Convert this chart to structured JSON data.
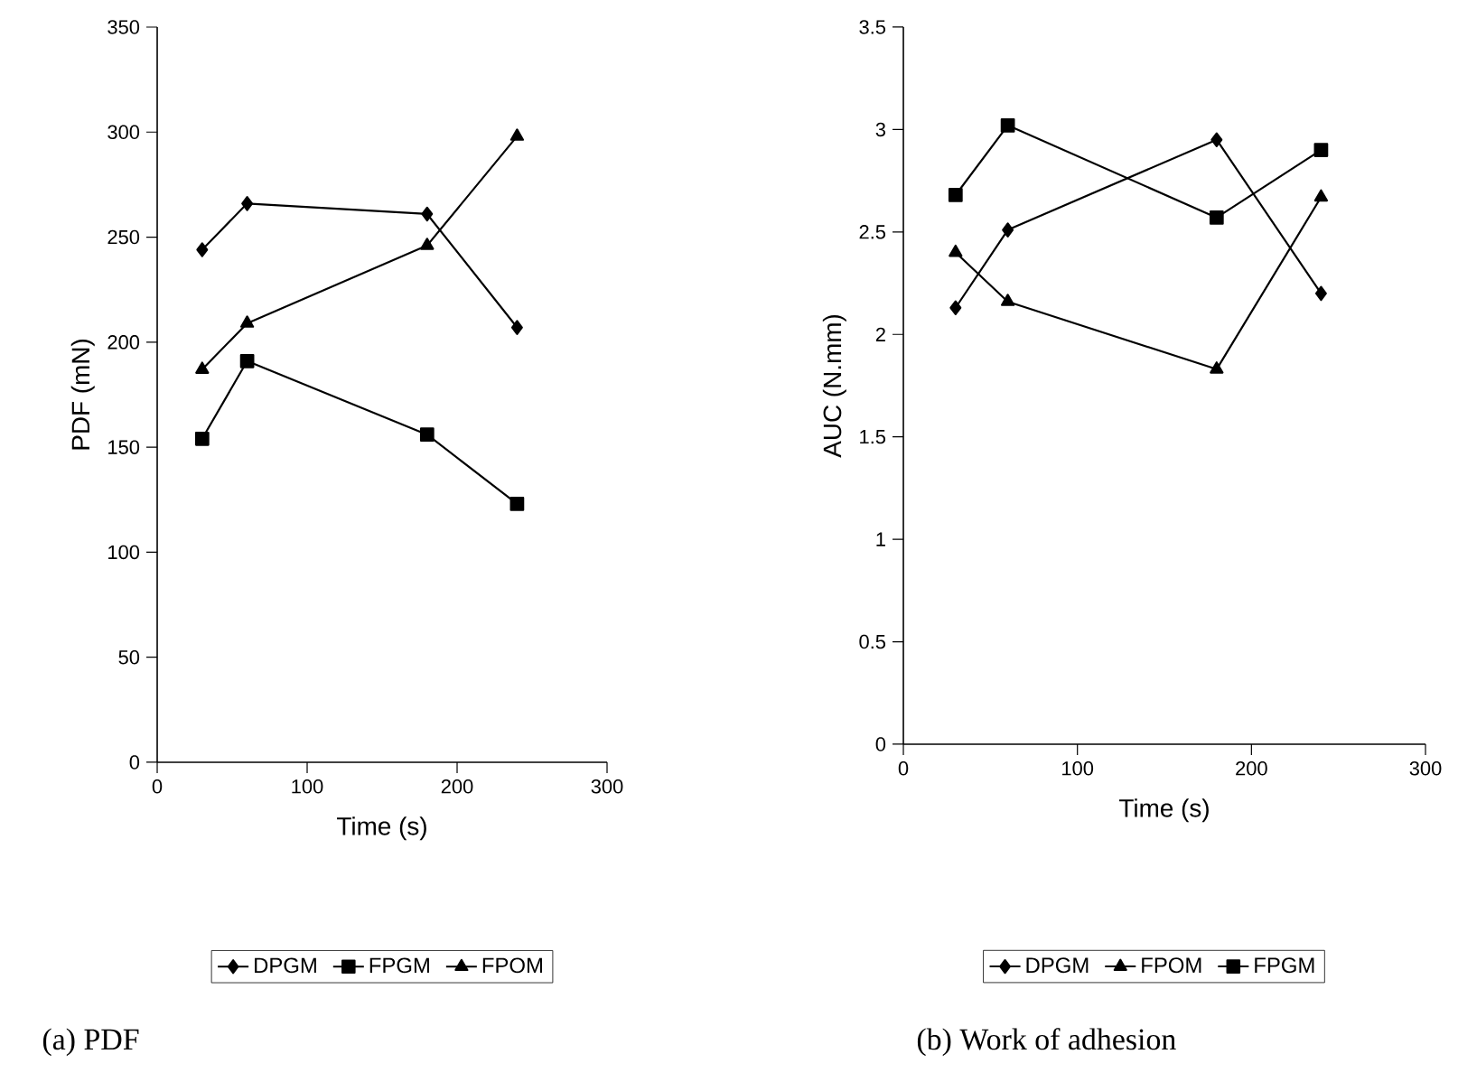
{
  "chart_data": [
    {
      "type": "line",
      "xlabel": "Time (s)",
      "ylabel": "PDF (mN)",
      "xlim": [
        0,
        300
      ],
      "xticks": [
        0,
        100,
        200,
        300
      ],
      "ylim": [
        0,
        350
      ],
      "yticks": [
        0,
        50,
        100,
        150,
        200,
        250,
        300,
        350
      ],
      "x": [
        30,
        60,
        180,
        240
      ],
      "legend": "bottom",
      "line_style": "solid",
      "annotations": [
        "(a) PDF"
      ],
      "series": [
        {
          "name": "DPGM",
          "color": "#000000",
          "marker": "diamond",
          "values": [
            244,
            266,
            261,
            207
          ]
        },
        {
          "name": "FPGM",
          "color": "#000000",
          "marker": "square",
          "values": [
            154,
            191,
            156,
            123
          ]
        },
        {
          "name": "FPOM",
          "color": "#000000",
          "marker": "triangle",
          "values": [
            187,
            209,
            246,
            298
          ]
        }
      ]
    },
    {
      "type": "line",
      "xlabel": "Time (s)",
      "ylabel": "AUC (N.mm)",
      "xlim": [
        0,
        300
      ],
      "xticks": [
        0,
        100,
        200,
        300
      ],
      "ylim": [
        0,
        3.5
      ],
      "yticks": [
        0,
        0.5,
        1,
        1.5,
        2,
        2.5,
        3,
        3.5
      ],
      "x": [
        30,
        60,
        180,
        240
      ],
      "legend": "bottom",
      "line_style": "solid",
      "annotations": [
        "(b) Work of adhesion"
      ],
      "series": [
        {
          "name": "DPGM",
          "color": "#000000",
          "marker": "diamond",
          "values": [
            2.13,
            2.51,
            2.95,
            2.2
          ]
        },
        {
          "name": "FPOM",
          "color": "#000000",
          "marker": "triangle",
          "values": [
            2.4,
            2.16,
            1.83,
            2.67
          ]
        },
        {
          "name": "FPGM",
          "color": "#000000",
          "marker": "square",
          "values": [
            2.68,
            3.02,
            2.57,
            2.9
          ]
        }
      ]
    }
  ]
}
